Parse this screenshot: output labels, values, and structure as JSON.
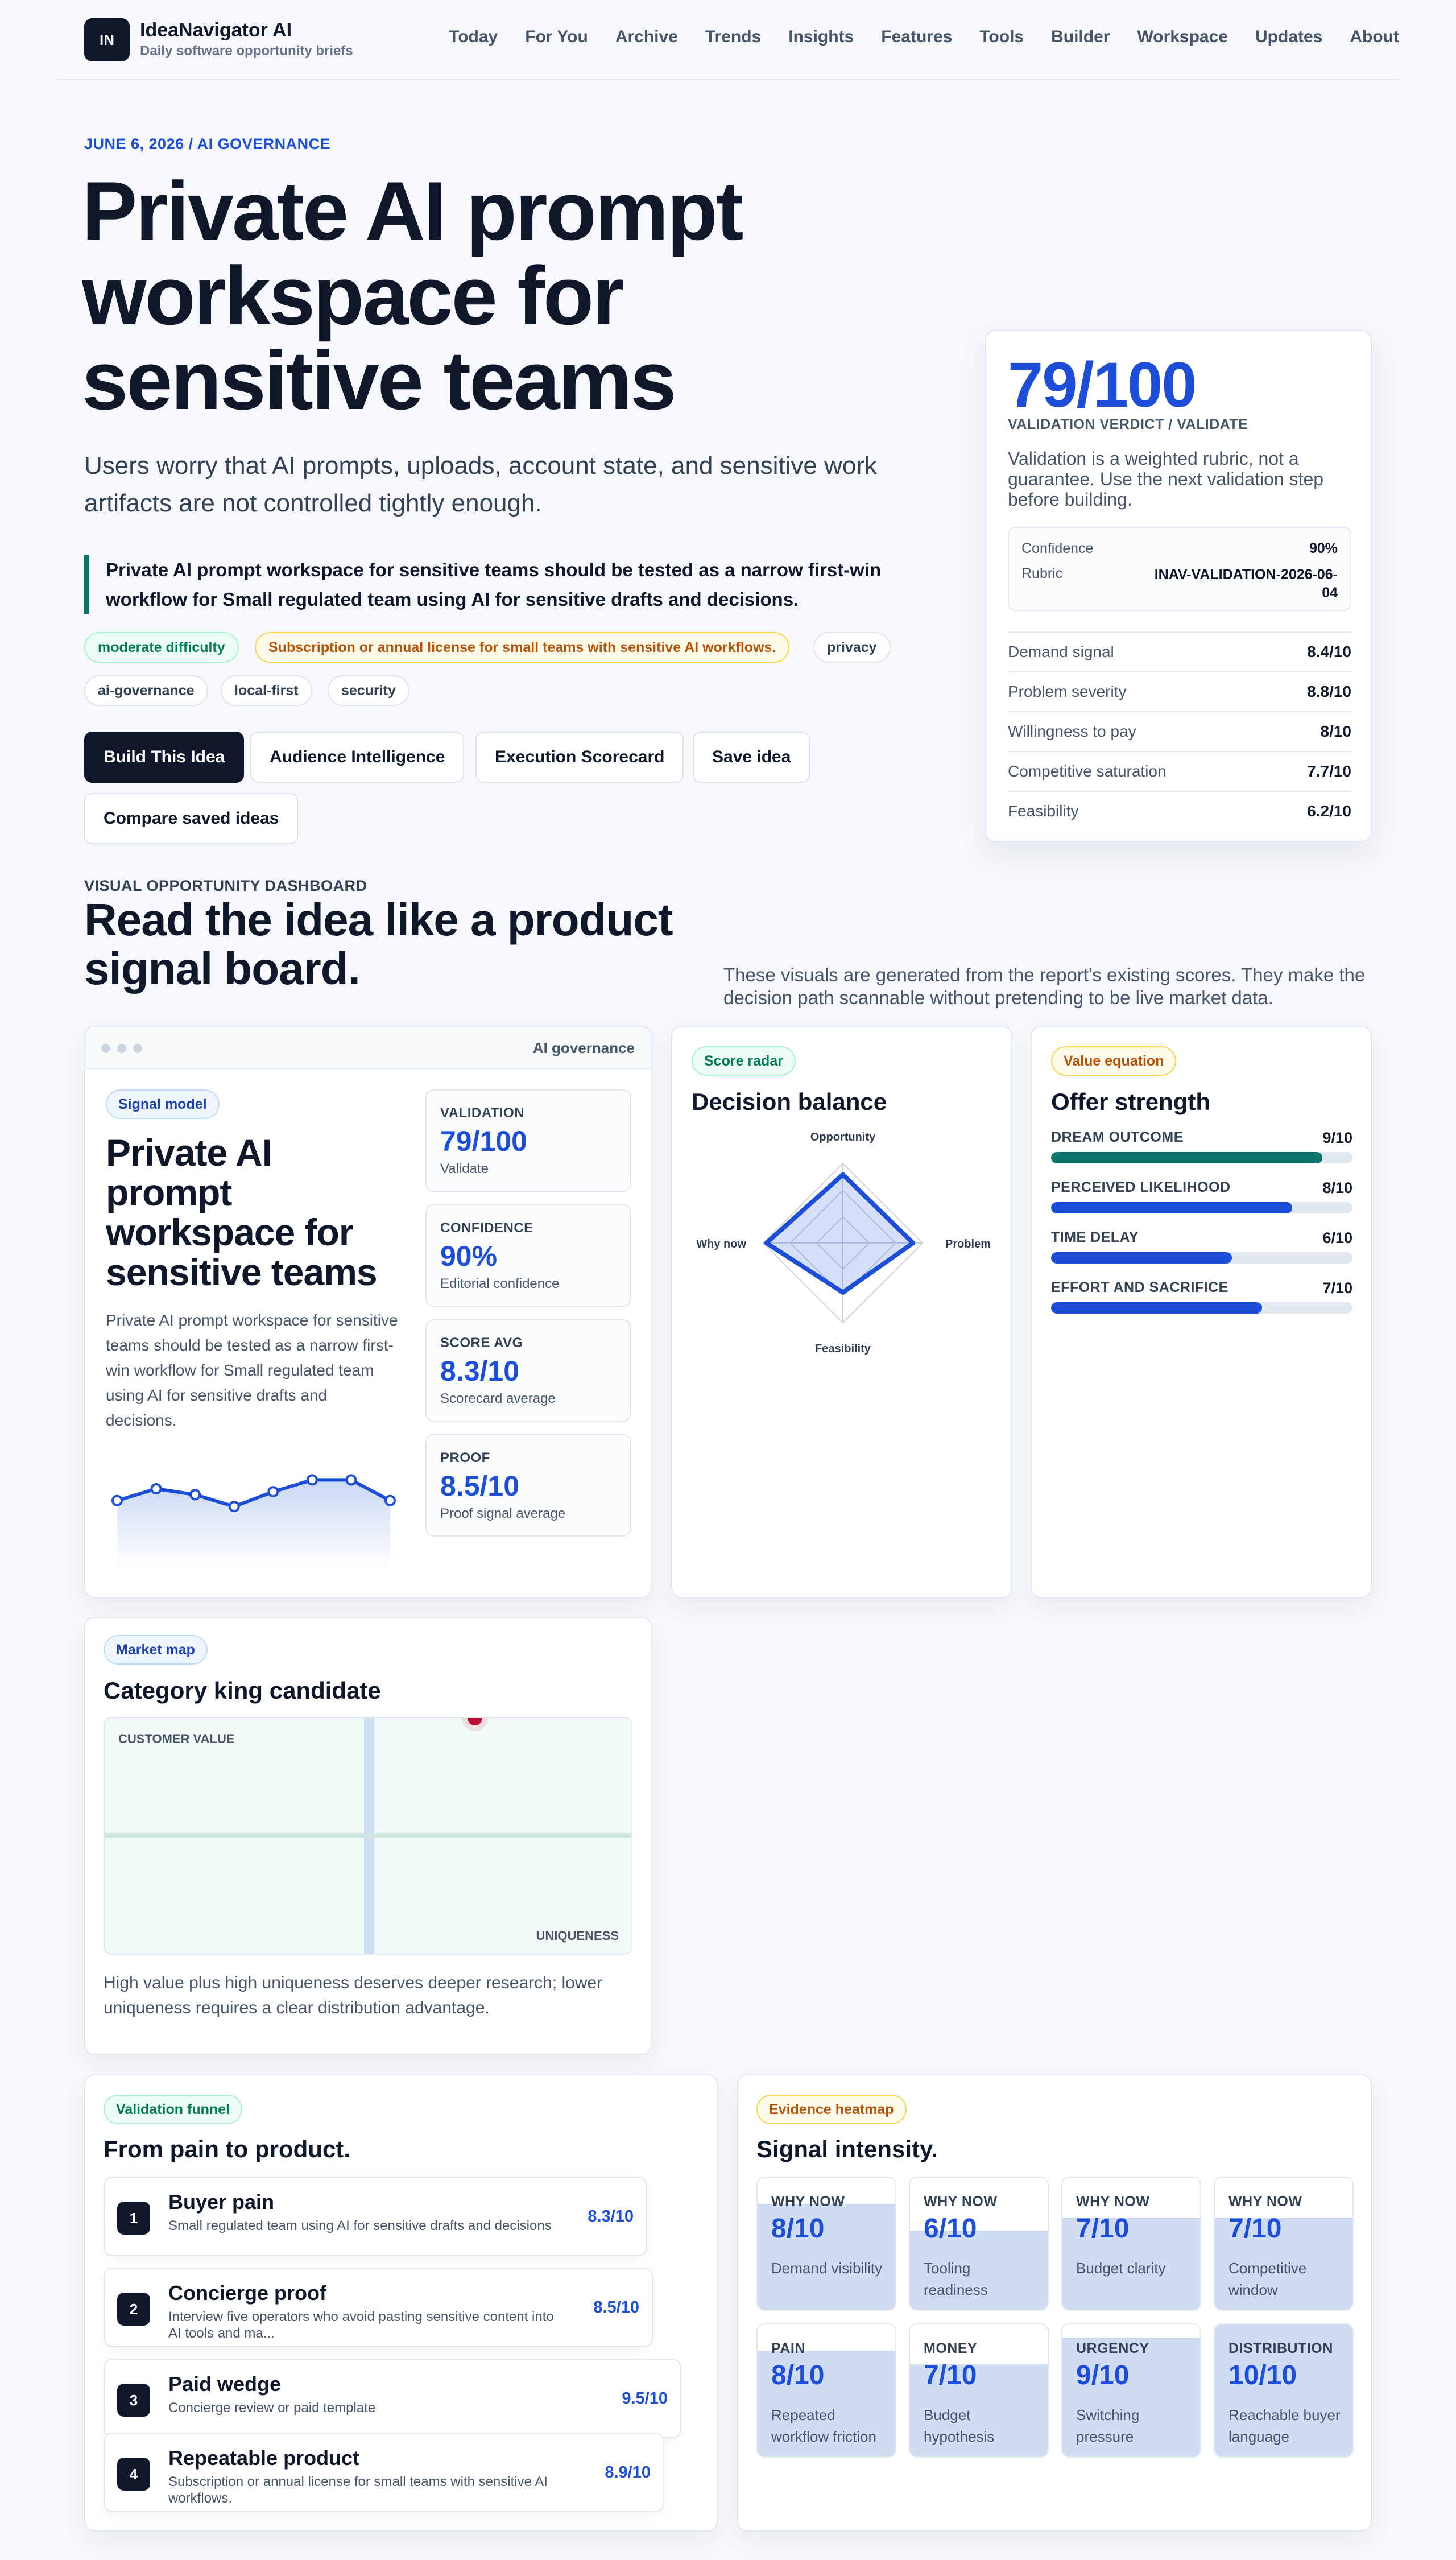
{
  "header": {
    "logo_text": "IN",
    "brand": "IdeaNavigator AI",
    "tagline": "Daily software opportunity briefs",
    "nav": [
      "Today",
      "For You",
      "Archive",
      "Trends",
      "Insights",
      "Features",
      "Tools",
      "Builder",
      "Workspace",
      "Updates",
      "About"
    ]
  },
  "hero": {
    "kicker": "JUNE 6, 2026 / AI GOVERNANCE",
    "title": "Private AI prompt workspace for sensitive teams",
    "lede": "Users worry that AI prompts, uploads, account state, and sensitive work artifacts are not controlled tightly enough.",
    "quote": "Private AI prompt workspace for sensitive teams should be tested as a narrow first-win workflow for Small regulated team using AI for sensitive drafts and decisions.",
    "tags": [
      "moderate difficulty",
      "Subscription or annual license for small teams with sensitive AI workflows.",
      "privacy",
      "ai-governance",
      "local-first",
      "security"
    ],
    "buttons": [
      "Build This Idea",
      "Audience Intelligence",
      "Execution Scorecard",
      "Save idea",
      "Compare saved ideas"
    ]
  },
  "verdict": {
    "score": "79/100",
    "label": "VALIDATION VERDICT / VALIDATE",
    "note": "Validation is a weighted rubric, not a guarantee. Use the next validation step before building.",
    "confidence_label": "Confidence",
    "confidence_value": "90%",
    "rubric_label": "Rubric",
    "rubric_value": "INAV-VALIDATION-2026-06-04",
    "rows": [
      {
        "label": "Demand signal",
        "value": "8.4/10"
      },
      {
        "label": "Problem severity",
        "value": "8.8/10"
      },
      {
        "label": "Willingness to pay",
        "value": "8/10"
      },
      {
        "label": "Competitive saturation",
        "value": "7.7/10"
      },
      {
        "label": "Feasibility",
        "value": "6.2/10"
      }
    ]
  },
  "dashboard": {
    "kicker": "VISUAL OPPORTUNITY DASHBOARD",
    "title": "Read the idea like a product signal board.",
    "note": "These visuals are generated from the report's existing scores. They make the decision path scannable without pretending to be live market data."
  },
  "signal_card": {
    "window_label": "AI governance",
    "pill": "Signal model",
    "title": "Private AI prompt workspace for sensitive teams",
    "desc": "Private AI prompt workspace for sensitive teams should be tested as a narrow first-win workflow for Small regulated team using AI for sensitive drafts and decisions.",
    "sparkline": [
      6.2,
      7.0,
      6.6,
      5.8,
      6.8,
      7.6,
      7.6,
      6.2
    ],
    "metrics": [
      {
        "label": "VALIDATION",
        "value": "79/100",
        "sub": "Validate"
      },
      {
        "label": "CONFIDENCE",
        "value": "90%",
        "sub": "Editorial confidence"
      },
      {
        "label": "SCORE AVG",
        "value": "8.3/10",
        "sub": "Scorecard average"
      },
      {
        "label": "PROOF",
        "value": "8.5/10",
        "sub": "Proof signal average"
      }
    ]
  },
  "radar": {
    "pill": "Score radar",
    "title": "Decision balance",
    "axes": [
      {
        "label": "Opportunity",
        "value": 8.6
      },
      {
        "label": "Problem",
        "value": 8.8
      },
      {
        "label": "Feasibility",
        "value": 6.2
      },
      {
        "label": "Why now",
        "value": 9.6
      }
    ],
    "max": 10
  },
  "offer": {
    "pill": "Value equation",
    "title": "Offer strength",
    "rows": [
      {
        "label": "DREAM OUTCOME",
        "value": "9/10",
        "score": 9,
        "color": "#0f766e"
      },
      {
        "label": "PERCEIVED LIKELIHOOD",
        "value": "8/10",
        "score": 8,
        "color": "#1d4ed8"
      },
      {
        "label": "TIME DELAY",
        "value": "6/10",
        "score": 6,
        "color": "#1d4ed8"
      },
      {
        "label": "EFFORT AND SACRIFICE",
        "value": "7/10",
        "score": 7,
        "color": "#1d4ed8"
      }
    ]
  },
  "market": {
    "pill": "Market map",
    "title": "Category king candidate",
    "y_label": "CUSTOMER VALUE",
    "x_label": "UNIQUENESS",
    "point": {
      "x": 0.7,
      "y": 1.0
    },
    "desc": "High value plus high uniqueness deserves deeper research; lower uniqueness requires a clear distribution advantage."
  },
  "funnel": {
    "pill": "Validation funnel",
    "title": "From pain to product.",
    "steps": [
      {
        "n": "1",
        "title": "Buyer pain",
        "desc": "Small regulated team using AI for sensitive drafts and decisions",
        "score": "8.3/10"
      },
      {
        "n": "2",
        "title": "Concierge proof",
        "desc": "Interview five operators who avoid pasting sensitive content into AI tools and ma...",
        "score": "8.5/10"
      },
      {
        "n": "3",
        "title": "Paid wedge",
        "desc": "Concierge review or paid template",
        "score": "9.5/10"
      },
      {
        "n": "4",
        "title": "Repeatable product",
        "desc": "Subscription or annual license for small teams with sensitive AI workflows.",
        "score": "8.9/10"
      }
    ]
  },
  "heatmap": {
    "pill": "Evidence heatmap",
    "title": "Signal intensity.",
    "cells": [
      {
        "label": "WHY NOW",
        "value": "8/10",
        "score": 8,
        "desc": "Demand visibility"
      },
      {
        "label": "WHY NOW",
        "value": "6/10",
        "score": 6,
        "desc": "Tooling readiness"
      },
      {
        "label": "WHY NOW",
        "value": "7/10",
        "score": 7,
        "desc": "Budget clarity"
      },
      {
        "label": "WHY NOW",
        "value": "7/10",
        "score": 7,
        "desc": "Competitive window"
      },
      {
        "label": "PAIN",
        "value": "8/10",
        "score": 8,
        "desc": "Repeated workflow friction"
      },
      {
        "label": "MONEY",
        "value": "7/10",
        "score": 7,
        "desc": "Budget hypothesis"
      },
      {
        "label": "URGENCY",
        "value": "9/10",
        "score": 9,
        "desc": "Switching pressure"
      },
      {
        "label": "DISTRIBUTION",
        "value": "10/10",
        "score": 10,
        "desc": "Reachable buyer language"
      }
    ]
  }
}
